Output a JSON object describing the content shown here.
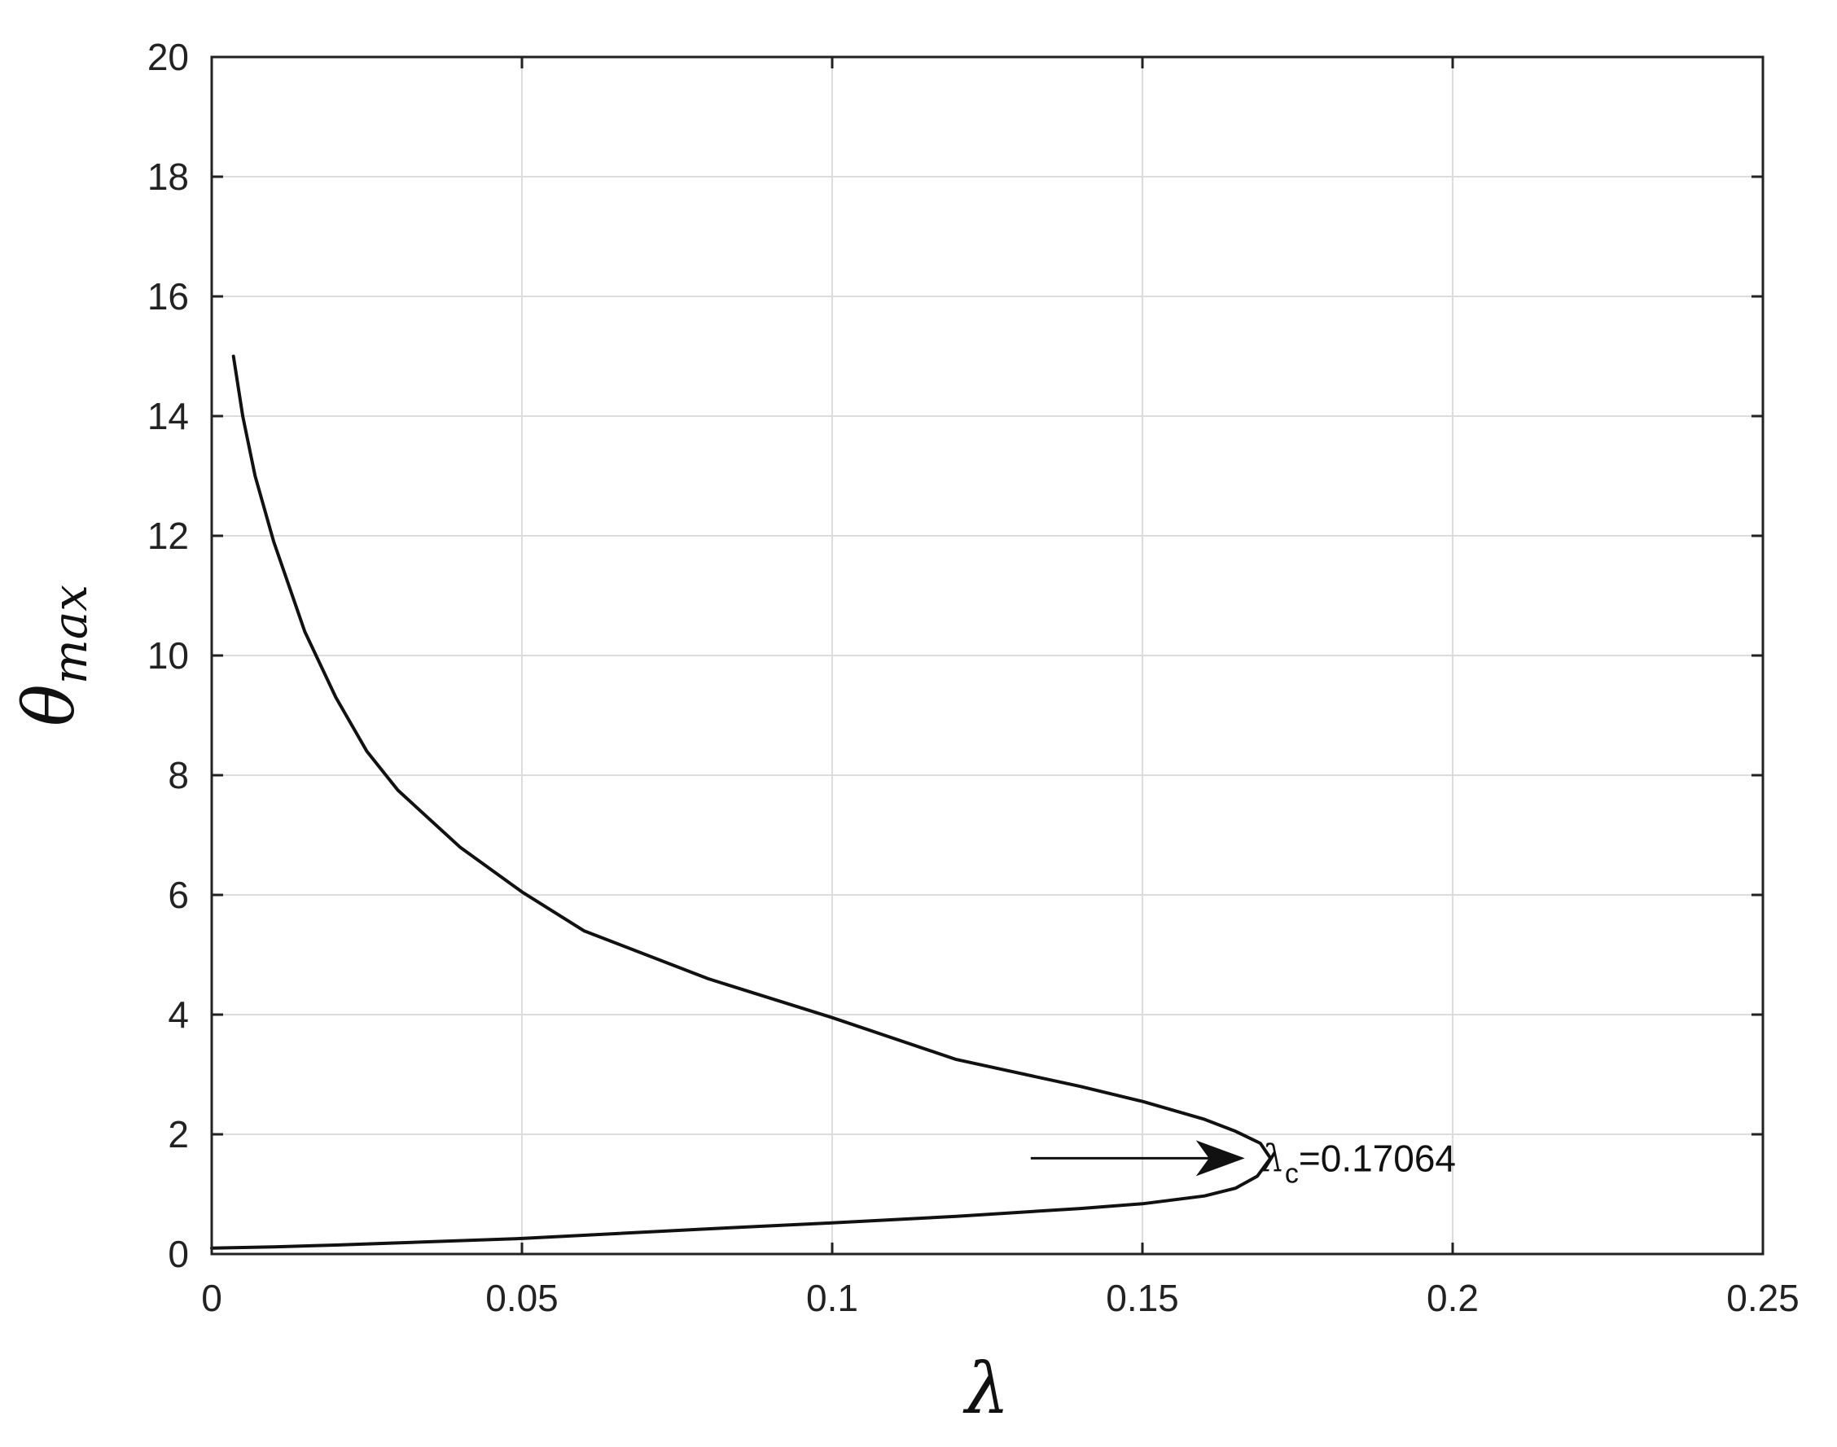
{
  "chart_data": {
    "type": "line",
    "title": "",
    "xlabel": "λ",
    "ylabel": {
      "base": "θ",
      "subscript": "max"
    },
    "xlim": [
      0,
      0.25
    ],
    "ylim": [
      0,
      20
    ],
    "xticks": [
      0,
      0.05,
      0.1,
      0.15,
      0.2,
      0.25
    ],
    "xtick_labels": [
      "0",
      "0.05",
      "0.1",
      "0.15",
      "0.2",
      "0.25"
    ],
    "yticks": [
      0,
      2,
      4,
      6,
      8,
      10,
      12,
      14,
      16,
      18,
      20
    ],
    "ytick_labels": [
      "0",
      "2",
      "4",
      "6",
      "8",
      "10",
      "12",
      "14",
      "16",
      "18",
      "20"
    ],
    "grid": true,
    "legend": "none",
    "colors": {
      "line": "#111111",
      "grid": "#dcdcdc",
      "axes": "#222222",
      "background": "#ffffff"
    },
    "series": [
      {
        "points": [
          [
            0.0,
            0.1
          ],
          [
            0.01,
            0.12
          ],
          [
            0.02,
            0.15
          ],
          [
            0.05,
            0.26
          ],
          [
            0.08,
            0.42
          ],
          [
            0.1,
            0.52
          ],
          [
            0.12,
            0.63
          ],
          [
            0.14,
            0.76
          ],
          [
            0.15,
            0.84
          ],
          [
            0.16,
            0.97
          ],
          [
            0.165,
            1.1
          ],
          [
            0.1685,
            1.3
          ],
          [
            0.17064,
            1.6
          ],
          [
            0.169,
            1.85
          ],
          [
            0.165,
            2.05
          ],
          [
            0.16,
            2.25
          ],
          [
            0.15,
            2.55
          ],
          [
            0.14,
            2.8
          ],
          [
            0.12,
            3.25
          ],
          [
            0.1,
            3.95
          ],
          [
            0.08,
            4.6
          ],
          [
            0.06,
            5.4
          ],
          [
            0.05,
            6.05
          ],
          [
            0.04,
            6.8
          ],
          [
            0.03,
            7.75
          ],
          [
            0.025,
            8.4
          ],
          [
            0.02,
            9.3
          ],
          [
            0.015,
            10.4
          ],
          [
            0.01,
            11.9
          ],
          [
            0.007,
            13.0
          ],
          [
            0.005,
            14.0
          ],
          [
            0.0035,
            15.0
          ]
        ]
      }
    ],
    "annotations": [
      {
        "text_symbol": "λ",
        "text_subscript": "c",
        "text_value": "=0.17064",
        "arrow_from": [
          0.132,
          1.6
        ],
        "arrow_to": [
          0.1665,
          1.6
        ]
      }
    ]
  }
}
